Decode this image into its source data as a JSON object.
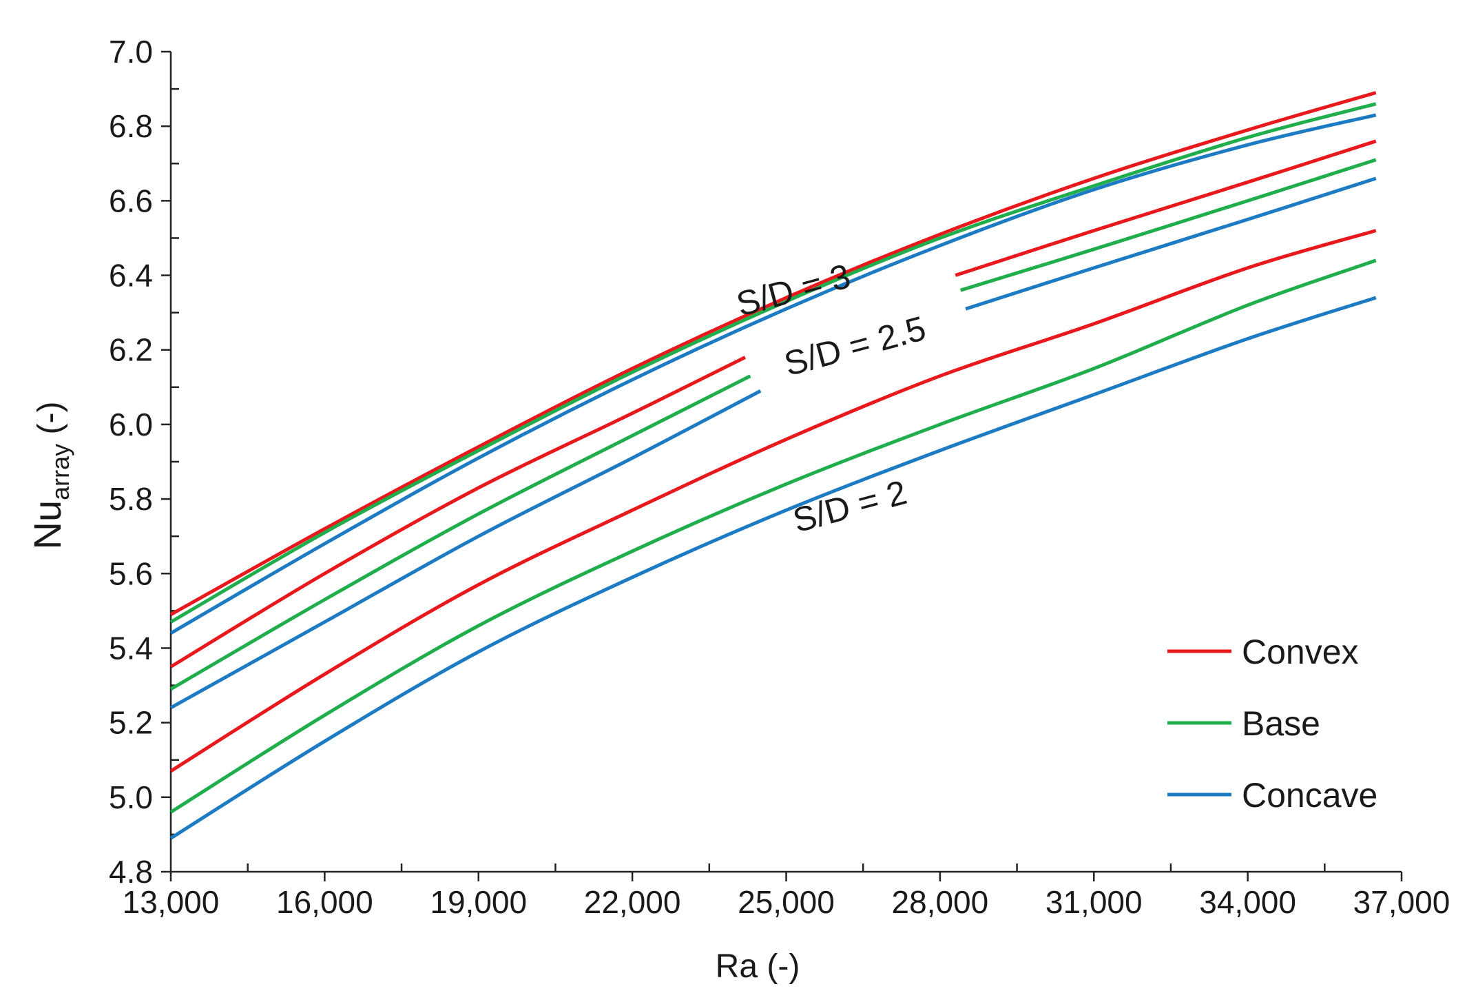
{
  "chart_data": {
    "type": "line",
    "title": "",
    "xlabel": "Ra (-)",
    "ylabel": {
      "base": "Nu",
      "subscript": "array",
      "unit": " (-)"
    },
    "xlim": [
      13000,
      37000
    ],
    "ylim": [
      4.8,
      7.0
    ],
    "x_ticks": [
      13000,
      16000,
      19000,
      22000,
      25000,
      28000,
      31000,
      34000,
      37000
    ],
    "x_tick_labels": [
      "13,000",
      "16,000",
      "19,000",
      "22,000",
      "25,000",
      "28,000",
      "31,000",
      "34,000",
      "37,000"
    ],
    "y_ticks": [
      4.8,
      5.0,
      5.2,
      5.4,
      5.6,
      5.8,
      6.0,
      6.2,
      6.4,
      6.6,
      6.8,
      7.0
    ],
    "y_tick_labels": [
      "4.8",
      "5.0",
      "5.2",
      "5.4",
      "5.6",
      "5.8",
      "6.0",
      "6.2",
      "6.4",
      "6.6",
      "6.8",
      "7.0"
    ],
    "grid": false,
    "legend_position": "bottom-right",
    "legend": [
      {
        "name": "Convex",
        "color": "#e8191d"
      },
      {
        "name": "Base",
        "color": "#1fae4b"
      },
      {
        "name": "Concave",
        "color": "#1d7bc4"
      }
    ],
    "annotations": [
      {
        "text": "S/D = 3",
        "x": 25200,
        "y": 6.33,
        "angle": -15
      },
      {
        "text": "S/D = 2.5",
        "x": 26400,
        "y": 6.18,
        "angle": -15
      },
      {
        "text": "S/D = 2",
        "x": 26300,
        "y": 5.75,
        "angle": -15
      }
    ],
    "series": [
      {
        "name": "Convex",
        "group": "S/D = 3",
        "color": "#e8191d",
        "x": [
          13000,
          16000,
          19000,
          22000,
          25000,
          28000,
          31000,
          34000,
          36500
        ],
        "y": [
          5.49,
          5.72,
          5.94,
          6.15,
          6.34,
          6.51,
          6.66,
          6.79,
          6.89
        ]
      },
      {
        "name": "Base",
        "group": "S/D = 3",
        "color": "#1fae4b",
        "x": [
          13000,
          16000,
          19000,
          22000,
          25000,
          28000,
          31000,
          34000,
          36500
        ],
        "y": [
          5.47,
          5.71,
          5.93,
          6.14,
          6.33,
          6.5,
          6.64,
          6.77,
          6.86
        ]
      },
      {
        "name": "Concave",
        "group": "S/D = 3",
        "color": "#1d7bc4",
        "x": [
          13000,
          16000,
          19000,
          22000,
          25000,
          28000,
          31000,
          34000,
          36500
        ],
        "y": [
          5.44,
          5.68,
          5.91,
          6.12,
          6.31,
          6.48,
          6.63,
          6.75,
          6.83
        ]
      },
      {
        "name": "Convex",
        "group": "S/D = 2.5",
        "color": "#e8191d",
        "x": [
          13000,
          16000,
          19000,
          22000,
          24200
        ],
        "y": [
          5.35,
          5.6,
          5.83,
          6.03,
          6.18
        ]
      },
      {
        "name": "Convex",
        "group": "S/D = 2.5",
        "color": "#e8191d",
        "x": [
          28300,
          31000,
          34000,
          36500
        ],
        "y": [
          6.4,
          6.52,
          6.65,
          6.76
        ]
      },
      {
        "name": "Base",
        "group": "S/D = 2.5",
        "color": "#1fae4b",
        "x": [
          13000,
          16000,
          19000,
          22000,
          24300
        ],
        "y": [
          5.29,
          5.53,
          5.76,
          5.97,
          6.13
        ]
      },
      {
        "name": "Base",
        "group": "S/D = 2.5",
        "color": "#1fae4b",
        "x": [
          28400,
          31000,
          34000,
          36500
        ],
        "y": [
          6.36,
          6.47,
          6.6,
          6.71
        ]
      },
      {
        "name": "Concave",
        "group": "S/D = 2.5",
        "color": "#1d7bc4",
        "x": [
          13000,
          16000,
          19000,
          22000,
          24500
        ],
        "y": [
          5.24,
          5.47,
          5.7,
          5.91,
          6.09
        ]
      },
      {
        "name": "Concave",
        "group": "S/D = 2.5",
        "color": "#1d7bc4",
        "x": [
          28500,
          31000,
          34000,
          36500
        ],
        "y": [
          6.31,
          6.42,
          6.55,
          6.66
        ]
      },
      {
        "name": "Convex",
        "group": "S/D = 2",
        "color": "#e8191d",
        "x": [
          13000,
          16000,
          19000,
          22000,
          25000,
          28000,
          31000,
          34000,
          36500
        ],
        "y": [
          5.07,
          5.33,
          5.57,
          5.77,
          5.96,
          6.13,
          6.27,
          6.42,
          6.52
        ]
      },
      {
        "name": "Base",
        "group": "S/D = 2",
        "color": "#1fae4b",
        "x": [
          13000,
          16000,
          19000,
          22000,
          25000,
          28000,
          31000,
          34000,
          36500
        ],
        "y": [
          4.96,
          5.22,
          5.46,
          5.66,
          5.84,
          6.0,
          6.15,
          6.32,
          6.44
        ]
      },
      {
        "name": "Concave",
        "group": "S/D = 2",
        "color": "#1d7bc4",
        "x": [
          13000,
          16000,
          19000,
          22000,
          25000,
          28000,
          31000,
          34000,
          36500
        ],
        "y": [
          4.89,
          5.15,
          5.39,
          5.59,
          5.77,
          5.93,
          6.08,
          6.23,
          6.34
        ]
      }
    ]
  }
}
